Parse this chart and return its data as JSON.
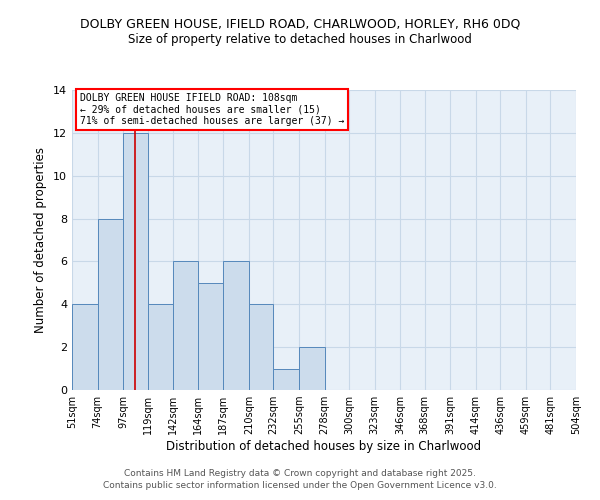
{
  "title1": "DOLBY GREEN HOUSE, IFIELD ROAD, CHARLWOOD, HORLEY, RH6 0DQ",
  "title2": "Size of property relative to detached houses in Charlwood",
  "xlabel": "Distribution of detached houses by size in Charlwood",
  "ylabel": "Number of detached properties",
  "bin_edges": [
    51,
    74,
    97,
    119,
    142,
    164,
    187,
    210,
    232,
    255,
    278,
    300,
    323,
    346,
    368,
    391,
    414,
    436,
    459,
    481,
    504
  ],
  "bin_counts": [
    4,
    8,
    12,
    4,
    6,
    5,
    6,
    4,
    1,
    2,
    0,
    0,
    0,
    0,
    0,
    0,
    0,
    0,
    0,
    0
  ],
  "bar_color": "#ccdcec",
  "bar_edge_color": "#5588bb",
  "grid_color": "#c8d8e8",
  "bg_color": "#ffffff",
  "plot_bg_color": "#e8f0f8",
  "marker_value": 108,
  "marker_color": "#cc0000",
  "annotation_title": "DOLBY GREEN HOUSE IFIELD ROAD: 108sqm",
  "annotation_line1": "← 29% of detached houses are smaller (15)",
  "annotation_line2": "71% of semi-detached houses are larger (37) →",
  "ylim": [
    0,
    14
  ],
  "yticks": [
    0,
    2,
    4,
    6,
    8,
    10,
    12,
    14
  ],
  "footer1": "Contains HM Land Registry data © Crown copyright and database right 2025.",
  "footer2": "Contains public sector information licensed under the Open Government Licence v3.0.",
  "tick_labels": [
    "51sqm",
    "74sqm",
    "97sqm",
    "119sqm",
    "142sqm",
    "164sqm",
    "187sqm",
    "210sqm",
    "232sqm",
    "255sqm",
    "278sqm",
    "300sqm",
    "323sqm",
    "346sqm",
    "368sqm",
    "391sqm",
    "414sqm",
    "436sqm",
    "459sqm",
    "481sqm",
    "504sqm"
  ]
}
